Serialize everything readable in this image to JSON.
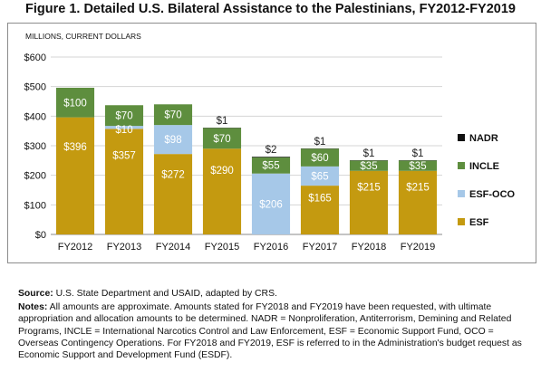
{
  "figure_title": "Figure 1. Detailed U.S. Bilateral Assistance to the Palestinians, FY2012-FY2019",
  "source": {
    "label": "Source:",
    "text": "U.S. State Department and USAID, adapted by CRS."
  },
  "notes": {
    "label": "Notes:",
    "text": "All amounts are approximate. Amounts stated for FY2018 and FY2019 have been requested, with ultimate appropriation and allocation amounts to be determined. NADR = Nonproliferation, Antiterrorism, Demining and Related Programs, INCLE = International Narcotics Control and Law Enforcement, ESF = Economic Support Fund, OCO = Overseas Contingency Operations. For FY2018 and FY2019, ESF is referred to in the Administration's budget request as Economic Support and Development Fund (ESDF)."
  },
  "chart_data": {
    "type": "bar",
    "stacked": true,
    "ylabel": "MILLIONS, CURRENT DOLLARS",
    "ylim": [
      0,
      600
    ],
    "yticks": [
      0,
      100,
      200,
      300,
      400,
      500,
      600
    ],
    "ytick_labels": [
      "$0",
      "$100",
      "$200",
      "$300",
      "$400",
      "$500",
      "$600"
    ],
    "grid": true,
    "legend_position": "right",
    "categories": [
      "FY2012",
      "FY2013",
      "FY2014",
      "FY2015",
      "FY2016",
      "FY2017",
      "FY2018",
      "FY2019"
    ],
    "series": [
      {
        "name": "ESF",
        "color": "#C49A10",
        "label_color": "#ffffff",
        "values": [
          396,
          357,
          272,
          290,
          0,
          165,
          215,
          215
        ],
        "labels": [
          "$396",
          "$357",
          "$272",
          "$290",
          "",
          "$165",
          "$215",
          "$215"
        ]
      },
      {
        "name": "ESF-OCO",
        "color": "#A6C8E8",
        "label_color": "#ffffff",
        "values": [
          0,
          10,
          98,
          0,
          206,
          65,
          0,
          0
        ],
        "labels": [
          "",
          "$10",
          "$98",
          "",
          "$206",
          "$65",
          "",
          ""
        ]
      },
      {
        "name": "INCLE",
        "color": "#5E8E3E",
        "label_color": "#ffffff",
        "values": [
          100,
          70,
          70,
          70,
          55,
          60,
          35,
          35
        ],
        "labels": [
          "$100",
          "$70",
          "$70",
          "$70",
          "$55",
          "$60",
          "$35",
          "$35"
        ]
      },
      {
        "name": "NADR",
        "color": "#111111",
        "label_color": "#222222",
        "values": [
          0,
          0,
          0,
          1,
          2,
          1,
          1,
          1
        ],
        "labels": [
          "",
          "",
          "",
          "$1",
          "$2",
          "$1",
          "$1",
          "$1"
        ]
      }
    ],
    "legend_order": [
      "NADR",
      "INCLE",
      "ESF-OCO",
      "ESF"
    ]
  }
}
